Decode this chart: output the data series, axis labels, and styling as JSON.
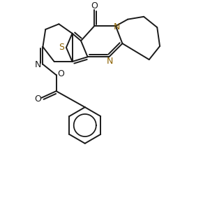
{
  "bg_color": "#ffffff",
  "line_color": "#1a1a1a",
  "heteroatom_color": "#8B6000",
  "bond_lw": 1.4,
  "figsize": [
    3.01,
    3.1
  ],
  "dpi": 100,
  "xlim": [
    0,
    10
  ],
  "ylim": [
    -6,
    10
  ]
}
